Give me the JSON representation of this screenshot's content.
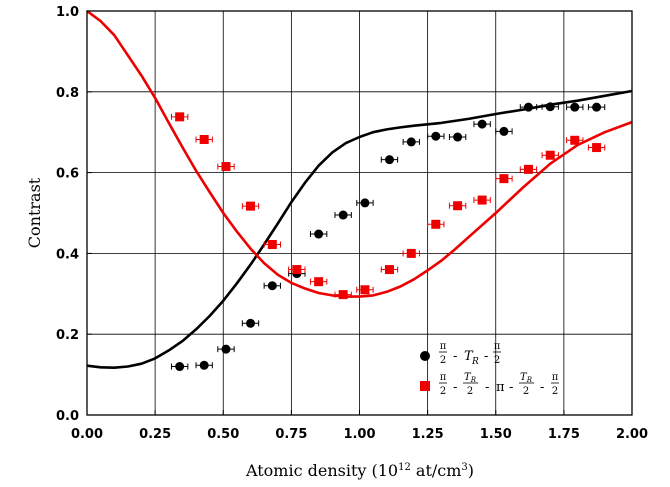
{
  "chart_data": {
    "type": "scatter",
    "xlabel": "Atomic density (10",
    "xlabel_sup": "12",
    "xlabel_unit": " at/cm",
    "xlabel_unit_sup": "3",
    "xlabel_close": ")",
    "ylabel": "Contrast",
    "xlim": [
      0,
      2
    ],
    "ylim": [
      0,
      1
    ],
    "x_ticks": [
      "0.00",
      "0.25",
      "0.50",
      "0.75",
      "1.00",
      "1.25",
      "1.50",
      "1.75",
      "2.00"
    ],
    "y_ticks": [
      "0.0",
      "0.2",
      "0.4",
      "0.6",
      "0.8",
      "1.0"
    ],
    "x_tick_values": [
      0,
      0.25,
      0.5,
      0.75,
      1.0,
      1.25,
      1.5,
      1.75,
      2.0
    ],
    "y_tick_values": [
      0,
      0.2,
      0.4,
      0.6,
      0.8,
      1.0
    ],
    "grid": true,
    "legend_position": "bottom-right",
    "colors": {
      "black_series": "#000000",
      "red_series": "#ee0000"
    },
    "series": [
      {
        "name": "π/2 - T_R - π/2",
        "marker": "circle",
        "color": "#000000",
        "x": [
          0.34,
          0.43,
          0.51,
          0.6,
          0.68,
          0.77,
          0.85,
          0.94,
          1.02,
          1.11,
          1.19,
          1.28,
          1.36,
          1.45,
          1.53,
          1.62,
          1.7,
          1.79,
          1.87
        ],
        "y": [
          0.12,
          0.123,
          0.163,
          0.227,
          0.32,
          0.35,
          0.448,
          0.495,
          0.525,
          0.632,
          0.676,
          0.69,
          0.688,
          0.72,
          0.702,
          0.762,
          0.763,
          0.762,
          0.762
        ],
        "xerr": 0.03
      },
      {
        "name": "π/2 - T_R/2 - π - T_R/2 - π/2",
        "marker": "square",
        "color": "#ee0000",
        "x": [
          0.34,
          0.43,
          0.51,
          0.6,
          0.68,
          0.77,
          0.85,
          0.94,
          1.02,
          1.11,
          1.19,
          1.28,
          1.36,
          1.45,
          1.53,
          1.62,
          1.7,
          1.79,
          1.87
        ],
        "y": [
          0.738,
          0.682,
          0.615,
          0.517,
          0.422,
          0.36,
          0.33,
          0.298,
          0.31,
          0.36,
          0.4,
          0.472,
          0.518,
          0.532,
          0.585,
          0.608,
          0.643,
          0.68,
          0.662
        ],
        "xerr": 0.03
      }
    ],
    "curves": [
      {
        "color": "#000000",
        "x": [
          0.0,
          0.05,
          0.1,
          0.15,
          0.2,
          0.25,
          0.3,
          0.35,
          0.4,
          0.45,
          0.5,
          0.55,
          0.6,
          0.65,
          0.7,
          0.75,
          0.8,
          0.85,
          0.9,
          0.95,
          1.0,
          1.05,
          1.1,
          1.15,
          1.2,
          1.3,
          1.4,
          1.5,
          1.6,
          1.7,
          1.8,
          1.9,
          2.0
        ],
        "y": [
          0.122,
          0.118,
          0.117,
          0.12,
          0.127,
          0.14,
          0.16,
          0.183,
          0.212,
          0.245,
          0.283,
          0.326,
          0.372,
          0.422,
          0.474,
          0.527,
          0.575,
          0.617,
          0.65,
          0.673,
          0.688,
          0.7,
          0.707,
          0.712,
          0.716,
          0.723,
          0.733,
          0.745,
          0.756,
          0.768,
          0.778,
          0.79,
          0.802
        ]
      },
      {
        "color": "#ee0000",
        "x": [
          0.0,
          0.05,
          0.1,
          0.15,
          0.2,
          0.25,
          0.3,
          0.35,
          0.4,
          0.45,
          0.5,
          0.55,
          0.6,
          0.65,
          0.7,
          0.75,
          0.8,
          0.85,
          0.9,
          0.95,
          1.0,
          1.05,
          1.1,
          1.15,
          1.2,
          1.25,
          1.3,
          1.35,
          1.4,
          1.5,
          1.6,
          1.7,
          1.8,
          1.9,
          2.0
        ],
        "y": [
          1.0,
          0.975,
          0.94,
          0.89,
          0.84,
          0.785,
          0.723,
          0.663,
          0.605,
          0.552,
          0.5,
          0.454,
          0.412,
          0.376,
          0.347,
          0.327,
          0.313,
          0.302,
          0.296,
          0.293,
          0.293,
          0.296,
          0.305,
          0.318,
          0.336,
          0.358,
          0.382,
          0.41,
          0.44,
          0.5,
          0.563,
          0.622,
          0.668,
          0.7,
          0.725
        ]
      }
    ]
  }
}
